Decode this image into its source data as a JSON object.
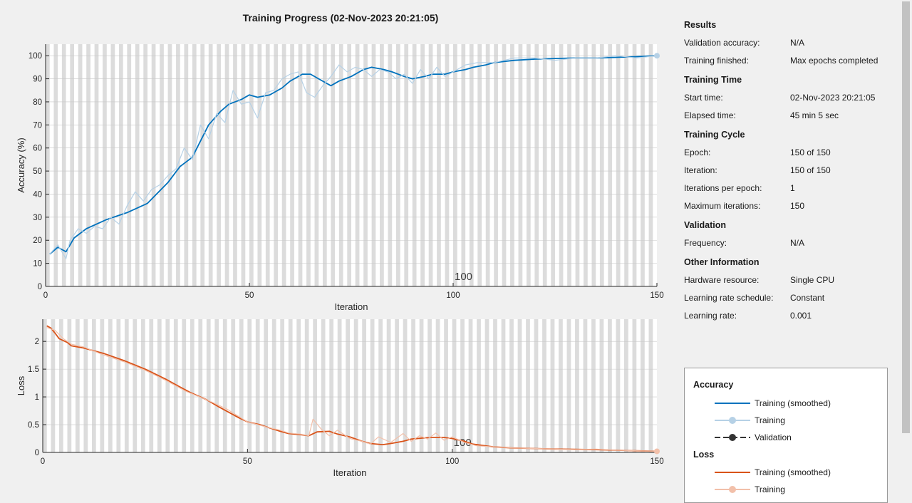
{
  "title": "Training Progress (02-Nov-2023 20:21:05)",
  "info": {
    "results": {
      "heading": "Results",
      "rows": [
        {
          "key": "Validation accuracy:",
          "value": "N/A"
        },
        {
          "key": "Training finished:",
          "value": "Max epochs completed"
        }
      ]
    },
    "time": {
      "heading": "Training Time",
      "rows": [
        {
          "key": "Start time:",
          "value": "02-Nov-2023 20:21:05"
        },
        {
          "key": "Elapsed time:",
          "value": "45 min 5 sec"
        }
      ]
    },
    "cycle": {
      "heading": "Training Cycle",
      "rows": [
        {
          "key": "Epoch:",
          "value": "150 of 150"
        },
        {
          "key": "Iteration:",
          "value": "150 of 150"
        },
        {
          "key": "Iterations per epoch:",
          "value": "1"
        },
        {
          "key": "Maximum iterations:",
          "value": "150"
        }
      ]
    },
    "validation": {
      "heading": "Validation",
      "rows": [
        {
          "key": "Frequency:",
          "value": "N/A"
        }
      ]
    },
    "other": {
      "heading": "Other Information",
      "rows": [
        {
          "key": "Hardware resource:",
          "value": "Single CPU"
        },
        {
          "key": "Learning rate schedule:",
          "value": "Constant"
        },
        {
          "key": "Learning rate:",
          "value": "0.001"
        }
      ]
    }
  },
  "legend": {
    "accuracy_heading": "Accuracy",
    "loss_heading": "Loss",
    "items": {
      "acc_smoothed": "Training (smoothed)",
      "acc_training": "Training",
      "acc_validation": "Validation",
      "loss_smoothed": "Training (smoothed)",
      "loss_training": "Training"
    }
  },
  "colors": {
    "acc_smoothed": "#0072bd",
    "acc_raw": "#b6d1e6",
    "loss_smoothed": "#d95319",
    "loss_raw": "#f2c0aa",
    "epoch_stripe": "#dcdcdc"
  },
  "chart_data": [
    {
      "type": "line",
      "id": "accuracy",
      "xlabel": "Iteration",
      "ylabel": "Accuracy (%)",
      "xlim": [
        0,
        150
      ],
      "ylim": [
        0,
        105
      ],
      "xticks": [
        0,
        50,
        100,
        150
      ],
      "yticks": [
        0,
        10,
        20,
        30,
        40,
        50,
        60,
        70,
        80,
        90,
        100
      ],
      "epoch_annotation": "100",
      "series": [
        {
          "name": "Training (smoothed)",
          "x": [
            1,
            3,
            5,
            7,
            10,
            15,
            20,
            25,
            30,
            33,
            36,
            40,
            43,
            45,
            48,
            50,
            52,
            55,
            58,
            60,
            63,
            65,
            67,
            70,
            72,
            75,
            78,
            80,
            83,
            85,
            88,
            90,
            93,
            95,
            98,
            100,
            103,
            105,
            108,
            110,
            115,
            120,
            125,
            130,
            135,
            140,
            145,
            150
          ],
          "y": [
            14,
            17,
            15,
            21,
            25,
            29,
            32,
            36,
            45,
            52,
            56,
            70,
            76,
            79,
            81,
            83,
            82,
            83,
            86,
            89,
            92,
            92,
            90,
            87,
            89,
            91,
            94,
            95,
            94,
            93,
            91,
            90,
            91,
            92,
            92,
            93,
            94,
            95,
            96,
            97,
            98,
            98.5,
            98.8,
            99,
            99,
            99.3,
            99.6,
            100
          ]
        },
        {
          "name": "Training",
          "x": [
            1,
            3,
            5,
            6,
            8,
            10,
            12,
            14,
            16,
            18,
            20,
            22,
            24,
            26,
            28,
            30,
            32,
            34,
            36,
            38,
            40,
            42,
            44,
            46,
            48,
            50,
            52,
            54,
            56,
            58,
            60,
            62,
            64,
            66,
            68,
            70,
            72,
            74,
            76,
            78,
            80,
            82,
            84,
            86,
            88,
            90,
            92,
            94,
            96,
            98,
            100,
            103,
            106,
            110,
            115,
            120,
            125,
            130,
            135,
            140,
            145,
            150
          ],
          "y": [
            14,
            18,
            12,
            20,
            25,
            23,
            26,
            25,
            30,
            27,
            35,
            41,
            37,
            42,
            44,
            48,
            51,
            60,
            55,
            70,
            64,
            75,
            71,
            85,
            79,
            80,
            73,
            84,
            85,
            90,
            92,
            93,
            84,
            82,
            87,
            91,
            96,
            93,
            95,
            94,
            91,
            94,
            93,
            90,
            92,
            88,
            94,
            90,
            95,
            91,
            93,
            96,
            97,
            97,
            99,
            99,
            98,
            99,
            99,
            100,
            99,
            100
          ]
        },
        {
          "name": "Validation",
          "x": [],
          "y": []
        }
      ]
    },
    {
      "type": "line",
      "id": "loss",
      "xlabel": "Iteration",
      "ylabel": "Loss",
      "xlim": [
        0,
        150
      ],
      "ylim": [
        0,
        2.4
      ],
      "xticks": [
        0,
        50,
        100,
        150
      ],
      "yticks": [
        0,
        0.5,
        1,
        1.5,
        2
      ],
      "ytick_labels": [
        "0",
        "0.5",
        "1",
        "1.5",
        "2"
      ],
      "epoch_annotation": "100",
      "series": [
        {
          "name": "Training (smoothed)",
          "x": [
            1,
            2,
            3,
            4,
            6,
            7,
            10,
            12,
            15,
            20,
            25,
            30,
            33,
            36,
            40,
            43,
            45,
            48,
            50,
            53,
            55,
            58,
            60,
            63,
            65,
            67,
            70,
            72,
            75,
            78,
            80,
            83,
            85,
            88,
            90,
            93,
            95,
            98,
            100,
            103,
            105,
            108,
            110,
            115,
            120,
            125,
            130,
            135,
            140,
            145,
            150
          ],
          "y": [
            2.28,
            2.24,
            2.15,
            2.05,
            1.98,
            1.92,
            1.88,
            1.84,
            1.78,
            1.65,
            1.5,
            1.32,
            1.2,
            1.08,
            0.95,
            0.82,
            0.74,
            0.62,
            0.55,
            0.5,
            0.45,
            0.38,
            0.34,
            0.32,
            0.3,
            0.37,
            0.38,
            0.33,
            0.28,
            0.2,
            0.16,
            0.14,
            0.16,
            0.2,
            0.24,
            0.26,
            0.27,
            0.27,
            0.25,
            0.2,
            0.15,
            0.12,
            0.1,
            0.08,
            0.07,
            0.06,
            0.055,
            0.05,
            0.04,
            0.03,
            0.02
          ]
        },
        {
          "name": "Training",
          "x": [
            1,
            3,
            5,
            7,
            10,
            15,
            20,
            25,
            30,
            35,
            40,
            45,
            50,
            55,
            58,
            60,
            63,
            65,
            66,
            68,
            70,
            72,
            75,
            78,
            80,
            82,
            85,
            88,
            90,
            92,
            94,
            96,
            98,
            100,
            103,
            106,
            110,
            115,
            120,
            125,
            130,
            135,
            140,
            145,
            150
          ],
          "y": [
            2.25,
            2.2,
            2.05,
            1.95,
            1.9,
            1.75,
            1.63,
            1.48,
            1.3,
            1.1,
            0.95,
            0.78,
            0.55,
            0.45,
            0.4,
            0.35,
            0.33,
            0.3,
            0.6,
            0.42,
            0.3,
            0.4,
            0.25,
            0.2,
            0.15,
            0.28,
            0.18,
            0.34,
            0.2,
            0.3,
            0.24,
            0.35,
            0.22,
            0.28,
            0.18,
            0.12,
            0.1,
            0.08,
            0.07,
            0.06,
            0.05,
            0.06,
            0.04,
            0.03,
            0.02
          ]
        }
      ]
    }
  ]
}
